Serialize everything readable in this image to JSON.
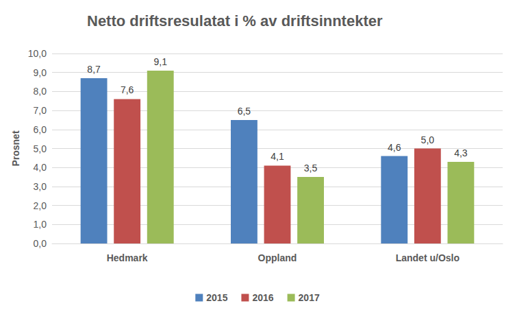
{
  "chart_data": {
    "type": "bar",
    "title": "Netto driftsresulatat i % av driftsinntekter",
    "y_label": "Prosnet",
    "categories": [
      "Hedmark",
      "Oppland",
      "Landet u/Oslo"
    ],
    "series": [
      {
        "name": "2015",
        "color": "#4f81bd",
        "values": [
          8.7,
          6.5,
          4.6
        ],
        "value_labels": [
          "8,7",
          "6,5",
          "4,6"
        ]
      },
      {
        "name": "2016",
        "color": "#c0504d",
        "values": [
          7.6,
          4.1,
          5.0
        ],
        "value_labels": [
          "7,6",
          "4,1",
          "5,0"
        ]
      },
      {
        "name": "2017",
        "color": "#9bbb59",
        "values": [
          9.1,
          3.5,
          4.3
        ],
        "value_labels": [
          "9,1",
          "3,5",
          "4,3"
        ]
      }
    ],
    "ylim": [
      0,
      10
    ],
    "yticks": [
      {
        "value": 0,
        "label": "0,0"
      },
      {
        "value": 1,
        "label": "1,0"
      },
      {
        "value": 2,
        "label": "2,0"
      },
      {
        "value": 3,
        "label": "3,0"
      },
      {
        "value": 4,
        "label": "4,0"
      },
      {
        "value": 5,
        "label": "5,0"
      },
      {
        "value": 6,
        "label": "6,0"
      },
      {
        "value": 7,
        "label": "7,0"
      },
      {
        "value": 8,
        "label": "8,0"
      },
      {
        "value": 9,
        "label": "9,0"
      },
      {
        "value": 10,
        "label": "10,0"
      }
    ],
    "grid": true,
    "legend": "bottom",
    "data_labels": true
  }
}
